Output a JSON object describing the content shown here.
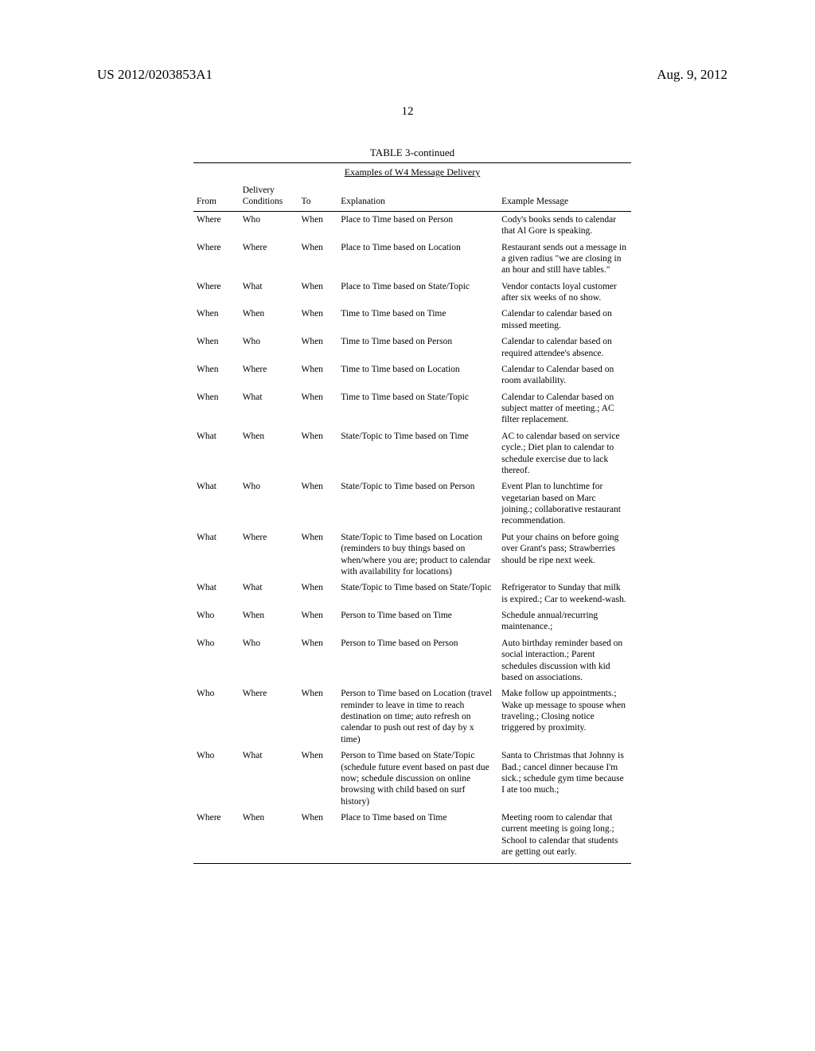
{
  "header": {
    "pub_number": "US 2012/0203853A1",
    "pub_date": "Aug. 9, 2012",
    "page_number": "12"
  },
  "table": {
    "title": "TABLE 3-continued",
    "caption": "Examples of W4 Message Delivery",
    "columns": [
      "From",
      "Delivery Conditions",
      "To",
      "Explanation",
      "Example Message"
    ],
    "rows": [
      {
        "from": "Where",
        "cond": "Who",
        "to": "When",
        "exp": "Place to Time based on Person",
        "msg": "Cody's books sends to calendar that Al Gore is speaking."
      },
      {
        "from": "Where",
        "cond": "Where",
        "to": "When",
        "exp": "Place to Time based on Location",
        "msg": "Restaurant sends out a message in a given radius \"we are closing in an hour and still have tables.\""
      },
      {
        "from": "Where",
        "cond": "What",
        "to": "When",
        "exp": "Place to Time based on State/Topic",
        "msg": "Vendor contacts loyal customer after six weeks of no show."
      },
      {
        "from": "When",
        "cond": "When",
        "to": "When",
        "exp": "Time to Time based on Time",
        "msg": "Calendar to calendar based on missed meeting."
      },
      {
        "from": "When",
        "cond": "Who",
        "to": "When",
        "exp": "Time to Time based on Person",
        "msg": "Calendar to calendar based on required attendee's absence."
      },
      {
        "from": "When",
        "cond": "Where",
        "to": "When",
        "exp": "Time to Time based on Location",
        "msg": "Calendar to Calendar based on room availability."
      },
      {
        "from": "When",
        "cond": "What",
        "to": "When",
        "exp": "Time to Time based on State/Topic",
        "msg": "Calendar to Calendar based on subject matter of meeting.; AC filter replacement."
      },
      {
        "from": "What",
        "cond": "When",
        "to": "When",
        "exp": "State/Topic to Time based on Time",
        "msg": "AC to calendar based on service cycle.; Diet plan to calendar to schedule exercise due to lack thereof."
      },
      {
        "from": "What",
        "cond": "Who",
        "to": "When",
        "exp": "State/Topic to Time based on Person",
        "msg": "Event Plan to lunchtime for vegetarian based on Marc joining.; collaborative restaurant recommendation."
      },
      {
        "from": "What",
        "cond": "Where",
        "to": "When",
        "exp": "State/Topic to Time based on Location (reminders to buy things based on when/where you are; product to calendar with availability for locations)",
        "msg": "Put your chains on before going over Grant's pass; Strawberries should be ripe next week."
      },
      {
        "from": "What",
        "cond": "What",
        "to": "When",
        "exp": "State/Topic to Time based on State/Topic",
        "msg": "Refrigerator to Sunday that milk is expired.; Car to weekend-wash."
      },
      {
        "from": "Who",
        "cond": "When",
        "to": "When",
        "exp": "Person to Time based on Time",
        "msg": "Schedule annual/recurring maintenance.;"
      },
      {
        "from": "Who",
        "cond": "Who",
        "to": "When",
        "exp": "Person to Time based on Person",
        "msg": "Auto birthday reminder based on social interaction.; Parent schedules discussion with kid based on associations."
      },
      {
        "from": "Who",
        "cond": "Where",
        "to": "When",
        "exp": "Person to Time based on Location (travel reminder to leave in time to reach destination on time; auto refresh on calendar to push out rest of day by x time)",
        "msg": "Make follow up appointments.; Wake up message to spouse when traveling.; Closing notice triggered by proximity."
      },
      {
        "from": "Who",
        "cond": "What",
        "to": "When",
        "exp": "Person to Time based on State/Topic (schedule future event based on past due now; schedule discussion on online browsing with child based on surf history)",
        "msg": "Santa to Christmas that Johnny is Bad.; cancel dinner because I'm sick.; schedule gym time because I ate too much.;"
      },
      {
        "from": "Where",
        "cond": "When",
        "to": "When",
        "exp": "Place to Time based on Time",
        "msg": "Meeting room to calendar that current meeting is going long.; School to calendar that students are getting out early."
      }
    ]
  }
}
